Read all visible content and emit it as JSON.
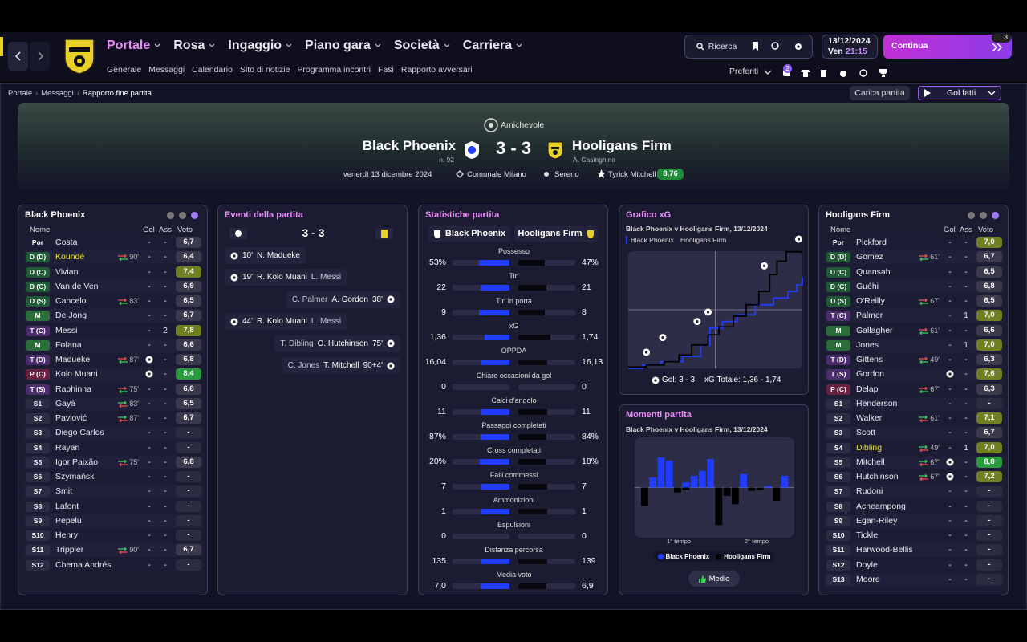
{
  "nav": {
    "tabs": [
      "Portale",
      "Rosa",
      "Ingaggio",
      "Piano gara",
      "Società",
      "Carriera"
    ],
    "subtabs": [
      "Generale",
      "Messaggi",
      "Calendario",
      "Sito di notizie",
      "Programma incontri",
      "Fasi",
      "Rapporto avversari"
    ],
    "search": "Ricerca",
    "date": "13/12/2024",
    "day": "Ven",
    "time": "21:15",
    "continue": "Continua",
    "continue_badge": "3",
    "favorites": "Preferiti",
    "notifications": "2"
  },
  "breadcrumb": [
    "Portale",
    "Messaggi",
    "Rapporto fine partita"
  ],
  "actions": {
    "load": "Carica partita",
    "view": "Gol fatti"
  },
  "match": {
    "competition": "Amichevole",
    "home": "Black Phoenix",
    "home_note": "n. 92",
    "score": "3 - 3",
    "away": "Hooligans Firm",
    "away_note": "A. Casinghino",
    "date": "venerdì 13 dicembre 2024",
    "venue": "Comunale Milano",
    "weather": "Sereno",
    "potm": "Tyrick Mitchell",
    "potm_rating": "8,76"
  },
  "home_panel": {
    "title": "Black Phoenix",
    "columns": [
      "Nome",
      "Gol",
      "Ass",
      "Voto"
    ],
    "rows": [
      {
        "pos": "Por",
        "name": "Costa",
        "gol": "-",
        "ass": "-",
        "voto": "6,7"
      },
      {
        "pos": "D (D)",
        "name": "Koundé",
        "highlight": true,
        "sub": "90'",
        "sub_dir": "out",
        "gol": "-",
        "ass": "-",
        "voto": "6,4"
      },
      {
        "pos": "D (C)",
        "name": "Vivian",
        "gol": "-",
        "ass": "-",
        "voto": "7,4"
      },
      {
        "pos": "D (C)",
        "name": "Van de Ven",
        "gol": "-",
        "ass": "-",
        "voto": "6,9"
      },
      {
        "pos": "D (S)",
        "name": "Cancelo",
        "sub": "83'",
        "sub_dir": "out",
        "gol": "-",
        "ass": "-",
        "voto": "6,5"
      },
      {
        "pos": "M",
        "name": "De Jong",
        "gol": "-",
        "ass": "-",
        "voto": "6,7"
      },
      {
        "pos": "T (C)",
        "name": "Messi",
        "gol": "-",
        "ass": "2",
        "voto": "7,8"
      },
      {
        "pos": "M",
        "name": "Fofana",
        "gol": "-",
        "ass": "-",
        "voto": "6,6"
      },
      {
        "pos": "T (D)",
        "name": "Madueke",
        "sub": "87'",
        "sub_dir": "out",
        "goal_icon": true,
        "ass": "-",
        "voto": "6,8"
      },
      {
        "pos": "P (C)",
        "name": "Kolo Muani",
        "goal_icon": true,
        "ass": "-",
        "voto": "8,4"
      },
      {
        "pos": "T (S)",
        "name": "Raphinha",
        "sub": "75'",
        "sub_dir": "out",
        "gol": "-",
        "ass": "-",
        "voto": "6,8"
      },
      {
        "pos": "S1",
        "name": "Gayà",
        "sub": "83'",
        "sub_dir": "in",
        "gol": "-",
        "ass": "-",
        "voto": "6,5"
      },
      {
        "pos": "S2",
        "name": "Pavlović",
        "sub": "87'",
        "sub_dir": "in",
        "gol": "-",
        "ass": "-",
        "voto": "6,7"
      },
      {
        "pos": "S3",
        "name": "Diego Carlos",
        "gol": "-",
        "ass": "-",
        "voto": "-"
      },
      {
        "pos": "S4",
        "name": "Rayan",
        "gol": "-",
        "ass": "-",
        "voto": "-"
      },
      {
        "pos": "S5",
        "name": "Igor Paixão",
        "sub": "75'",
        "sub_dir": "in",
        "gol": "-",
        "ass": "-",
        "voto": "6,8"
      },
      {
        "pos": "S6",
        "name": "Szymański",
        "gol": "-",
        "ass": "-",
        "voto": "-"
      },
      {
        "pos": "S7",
        "name": "Smit",
        "gol": "-",
        "ass": "-",
        "voto": "-"
      },
      {
        "pos": "S8",
        "name": "Lafont",
        "gol": "-",
        "ass": "-",
        "voto": "-"
      },
      {
        "pos": "S9",
        "name": "Pepelu",
        "gol": "-",
        "ass": "-",
        "voto": "-"
      },
      {
        "pos": "S10",
        "name": "Henry",
        "gol": "-",
        "ass": "-",
        "voto": "-"
      },
      {
        "pos": "S11",
        "name": "Trippier",
        "sub": "90'",
        "sub_dir": "in",
        "gol": "-",
        "ass": "-",
        "voto": "6,7"
      },
      {
        "pos": "S12",
        "name": "Chema Andrés",
        "gol": "-",
        "ass": "-",
        "voto": "-"
      }
    ]
  },
  "events": {
    "title": "Eventi della partita",
    "score": "3 - 3",
    "items": [
      {
        "side": "home",
        "minute": "10'",
        "scorer": "N. Madueke"
      },
      {
        "side": "home",
        "minute": "19'",
        "scorer": "R. Kolo Muani",
        "assist": "L. Messi"
      },
      {
        "side": "away",
        "minute": "38'",
        "scorer": "A. Gordon",
        "assist": "C. Palmer"
      },
      {
        "side": "home",
        "minute": "44'",
        "scorer": "R. Kolo Muani",
        "assist": "L. Messi"
      },
      {
        "side": "away",
        "minute": "75'",
        "scorer": "O. Hutchinson",
        "assist": "T. Dibling"
      },
      {
        "side": "away",
        "minute": "90+4'",
        "scorer": "T. Mitchell",
        "assist": "C. Jones"
      }
    ]
  },
  "stats": {
    "title": "Statistiche partita",
    "teams": [
      "Black Phoenix",
      "Hooligans Firm"
    ],
    "home_color": "#1f3cff",
    "away_color": "#07070d",
    "rows": [
      {
        "label": "Possesso",
        "values": [
          53,
          47
        ],
        "value_labels": [
          "53%",
          "47%"
        ]
      },
      {
        "label": "Tiri",
        "values": [
          22,
          21
        ]
      },
      {
        "label": "Tiri in porta",
        "values": [
          9,
          8
        ]
      },
      {
        "label": "xG",
        "values": [
          1.36,
          1.74
        ],
        "value_labels": [
          "1,36",
          "1,74"
        ]
      },
      {
        "label": "OPPDA",
        "values": [
          16.04,
          16.13
        ],
        "value_labels": [
          "16,04",
          "16,13"
        ]
      },
      {
        "label": "Chiare occasioni da gol",
        "values": [
          0,
          0
        ]
      },
      {
        "label": "Calci d'angolo",
        "values": [
          11,
          11
        ]
      },
      {
        "label": "Passaggi completati",
        "values": [
          87,
          84
        ],
        "value_labels": [
          "87%",
          "84%"
        ]
      },
      {
        "label": "Cross completati",
        "values": [
          20,
          18
        ],
        "value_labels": [
          "20%",
          "18%"
        ]
      },
      {
        "label": "Falli commessi",
        "values": [
          7,
          7
        ]
      },
      {
        "label": "Ammonizioni",
        "values": [
          1,
          1
        ]
      },
      {
        "label": "Espulsioni",
        "values": [
          0,
          0
        ]
      },
      {
        "label": "Distanza percorsa",
        "values": [
          135,
          139
        ]
      },
      {
        "label": "Media voto",
        "values": [
          7.0,
          6.9
        ],
        "value_labels": [
          "7,0",
          "6,9"
        ]
      }
    ]
  },
  "chart_data": [
    {
      "type": "line",
      "step": true,
      "title": "Grafico xG",
      "subtitle": "Black Phoenix v Hooligans Firm, 13/12/2024",
      "xlim": [
        0,
        96
      ],
      "ylim": [
        0,
        1.75
      ],
      "goals_label": "Gol: 3 - 3",
      "xg_total_label": "xG Totale: 1,36 - 1,74",
      "series": [
        {
          "name": "Black Phoenix",
          "color": "#1f3cff",
          "x": [
            0,
            8,
            18,
            30,
            40,
            45,
            52,
            60,
            70,
            80,
            88,
            93,
            96
          ],
          "values": [
            0,
            0.05,
            0.1,
            0.18,
            0.35,
            0.6,
            0.7,
            0.8,
            0.95,
            1.05,
            1.15,
            1.25,
            1.36
          ],
          "goals_x": [
            10,
            19,
            44
          ],
          "goals_y": [
            0.24,
            0.46,
            0.84
          ]
        },
        {
          "name": "Hooligans Firm",
          "color": "#000000",
          "x": [
            0,
            10,
            20,
            28,
            35,
            44,
            50,
            58,
            65,
            72,
            78,
            82,
            87,
            96
          ],
          "values": [
            0.02,
            0.05,
            0.1,
            0.2,
            0.35,
            0.5,
            0.62,
            0.78,
            0.95,
            1.15,
            1.4,
            1.6,
            1.74,
            1.74
          ],
          "goals_x": [
            38,
            75,
            94
          ],
          "goals_y": [
            0.7,
            1.53,
            1.93
          ]
        }
      ]
    },
    {
      "type": "bar",
      "mirrored": true,
      "title": "Momenti partita",
      "subtitle": "Black Phoenix v Hooligans Firm, 13/12/2024",
      "ylim": [
        0,
        60
      ],
      "categories": [
        null,
        null,
        null,
        null,
        null,
        null,
        null,
        null,
        null,
        null,
        null,
        null,
        null,
        null,
        null,
        null,
        null,
        null
      ],
      "x_labels": [
        "1° tempo",
        "2° tempo"
      ],
      "button": "Medie",
      "series": [
        {
          "name": "Black Phoenix",
          "color": "#1f3cff",
          "values": [
            0,
            12,
            36,
            32,
            0,
            6,
            14,
            20,
            34,
            0,
            0,
            0,
            16,
            0,
            0,
            2,
            0,
            14
          ]
        },
        {
          "name": "Hooligans Firm",
          "color": "#000000",
          "values": [
            22,
            0,
            0,
            0,
            6,
            3,
            0,
            0,
            0,
            45,
            10,
            20,
            0,
            4,
            3,
            0,
            16,
            0
          ]
        }
      ]
    }
  ],
  "away_panel": {
    "title": "Hooligans Firm",
    "columns": [
      "Nome",
      "Gol",
      "Ass",
      "Voto"
    ],
    "rows": [
      {
        "pos": "Por",
        "name": "Pickford",
        "gol": "-",
        "ass": "-",
        "voto": "7,0"
      },
      {
        "pos": "D (D)",
        "name": "Gomez",
        "sub": "61'",
        "sub_dir": "out",
        "gol": "-",
        "ass": "-",
        "voto": "6,7"
      },
      {
        "pos": "D (C)",
        "name": "Quansah",
        "gol": "-",
        "ass": "-",
        "voto": "6,5"
      },
      {
        "pos": "D (C)",
        "name": "Guéhi",
        "gol": "-",
        "ass": "-",
        "voto": "6,8"
      },
      {
        "pos": "D (S)",
        "name": "O'Reilly",
        "sub": "67'",
        "sub_dir": "out",
        "gol": "-",
        "ass": "-",
        "voto": "6,5"
      },
      {
        "pos": "T (C)",
        "name": "Palmer",
        "gol": "-",
        "ass": "1",
        "voto": "7,0"
      },
      {
        "pos": "M",
        "name": "Gallagher",
        "sub": "61'",
        "sub_dir": "out",
        "gol": "-",
        "ass": "-",
        "voto": "6,6"
      },
      {
        "pos": "M",
        "name": "Jones",
        "gol": "-",
        "ass": "1",
        "voto": "7,0"
      },
      {
        "pos": "T (D)",
        "name": "Gittens",
        "sub": "49'",
        "sub_dir": "out",
        "gol": "-",
        "ass": "-",
        "voto": "6,3"
      },
      {
        "pos": "T (S)",
        "name": "Gordon",
        "goal_icon": true,
        "ass": "-",
        "voto": "7,6"
      },
      {
        "pos": "P (C)",
        "name": "Delap",
        "sub": "67'",
        "sub_dir": "out",
        "gol": "-",
        "ass": "-",
        "voto": "6,3"
      },
      {
        "pos": "S1",
        "name": "Henderson",
        "gol": "-",
        "ass": "-",
        "voto": "-"
      },
      {
        "pos": "S2",
        "name": "Walker",
        "sub": "61'",
        "sub_dir": "in",
        "gol": "-",
        "ass": "-",
        "voto": "7,1"
      },
      {
        "pos": "S3",
        "name": "Scott",
        "gol": "-",
        "ass": "-",
        "voto": "6,7"
      },
      {
        "pos": "S4",
        "name": "Dibling",
        "highlight": true,
        "sub": "49'",
        "sub_dir": "in",
        "gol": "-",
        "ass": "1",
        "voto": "7,0"
      },
      {
        "pos": "S5",
        "name": "Mitchell",
        "sub": "67'",
        "sub_dir": "in",
        "goal_icon": true,
        "ass": "-",
        "voto": "8,8"
      },
      {
        "pos": "S6",
        "name": "Hutchinson",
        "sub": "67'",
        "sub_dir": "in",
        "goal_icon": true,
        "ass": "-",
        "voto": "7,2"
      },
      {
        "pos": "S7",
        "name": "Rudoni",
        "gol": "-",
        "ass": "-",
        "voto": "-"
      },
      {
        "pos": "S8",
        "name": "Acheampong",
        "gol": "-",
        "ass": "-",
        "voto": "-"
      },
      {
        "pos": "S9",
        "name": "Egan-Riley",
        "gol": "-",
        "ass": "-",
        "voto": "-"
      },
      {
        "pos": "S10",
        "name": "Tickle",
        "gol": "-",
        "ass": "-",
        "voto": "-"
      },
      {
        "pos": "S11",
        "name": "Harwood-Bellis",
        "gol": "-",
        "ass": "-",
        "voto": "-"
      },
      {
        "pos": "S12",
        "name": "Doyle",
        "gol": "-",
        "ass": "-",
        "voto": "-"
      },
      {
        "pos": "S13",
        "name": "Moore",
        "gol": "-",
        "ass": "-",
        "voto": "-"
      }
    ]
  }
}
